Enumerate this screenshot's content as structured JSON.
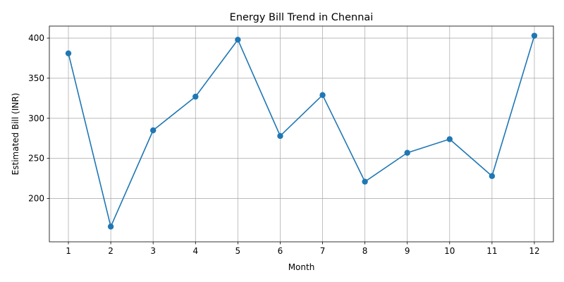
{
  "chart_data": {
    "type": "line",
    "title": "Energy Bill Trend in Chennai",
    "xlabel": "Month",
    "ylabel": "Estimated Bill (INR)",
    "x": [
      1,
      2,
      3,
      4,
      5,
      6,
      7,
      8,
      9,
      10,
      11,
      12
    ],
    "x_ticks": [
      "1",
      "2",
      "3",
      "4",
      "5",
      "6",
      "7",
      "8",
      "9",
      "10",
      "11",
      "12"
    ],
    "y_ticks": [
      "200",
      "250",
      "300",
      "350",
      "400"
    ],
    "series": [
      {
        "values": [
          381,
          165,
          285,
          327,
          398,
          278,
          329,
          221,
          257,
          274,
          228,
          403
        ],
        "color": "#1f77b4",
        "marker": "circle"
      }
    ],
    "xlim": [
      0.55,
      12.45
    ],
    "ylim": [
      146,
      415
    ],
    "grid": true,
    "legend": "none"
  }
}
